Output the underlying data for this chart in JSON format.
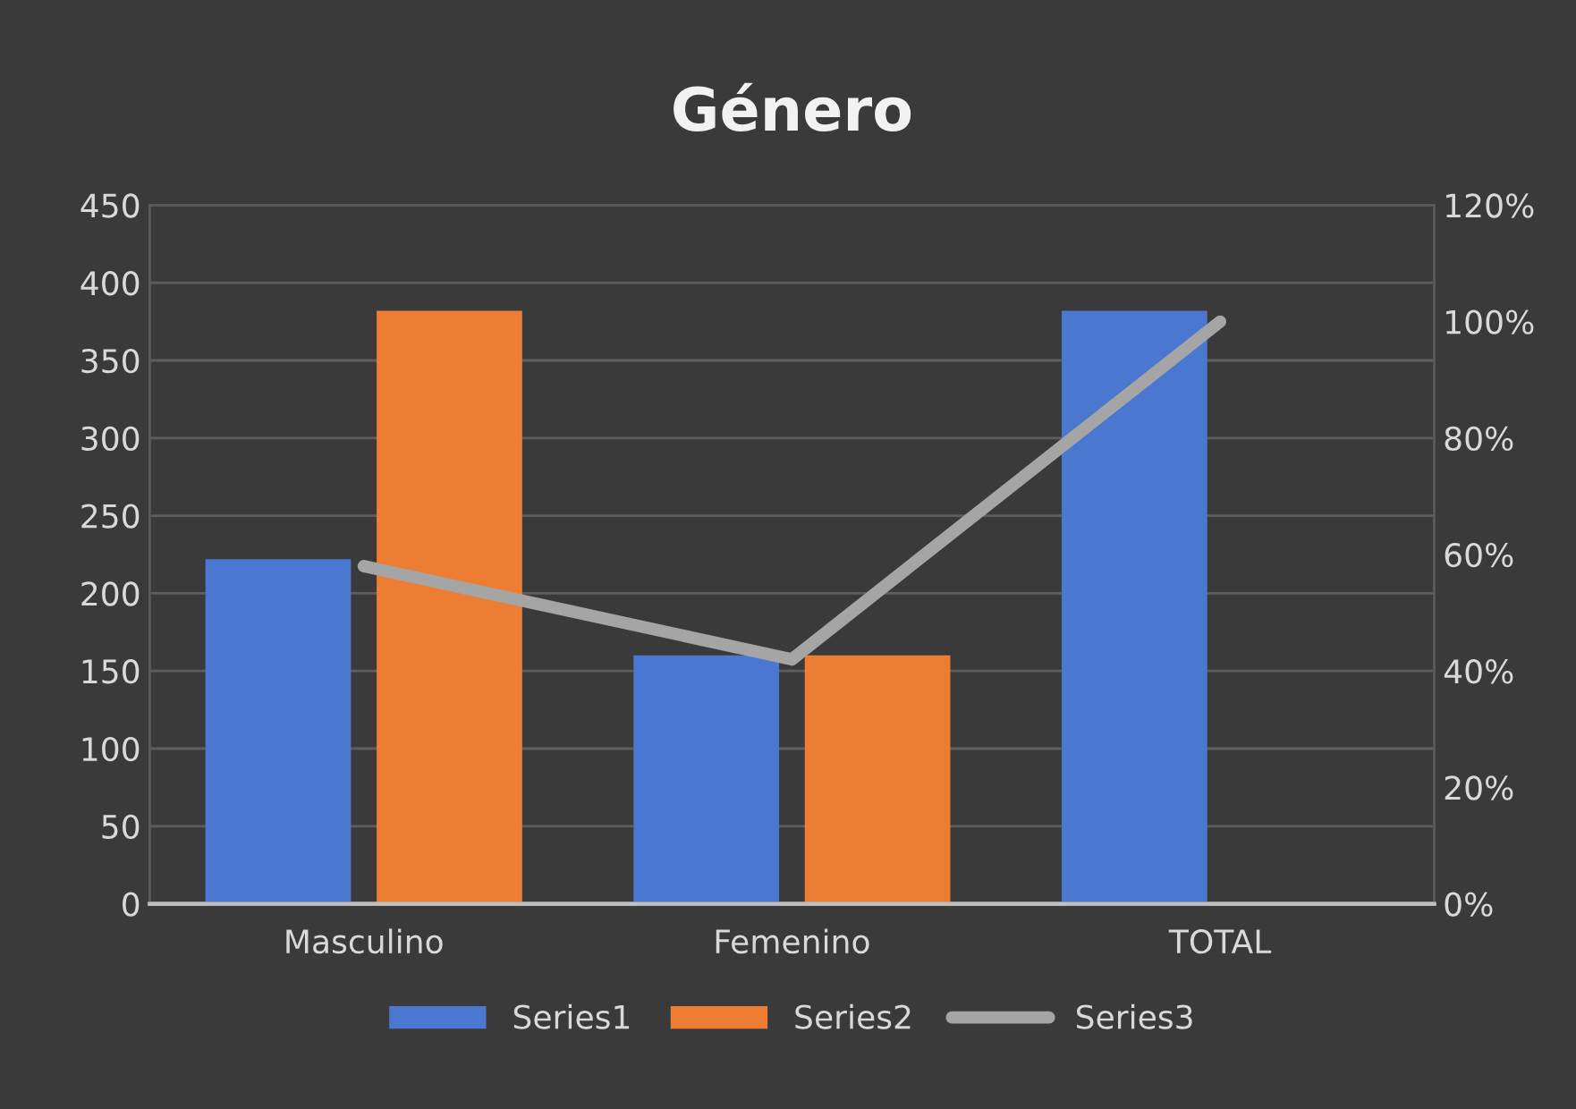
{
  "chart_data": {
    "type": "bar",
    "title": "Género",
    "categories": [
      "Masculino",
      "Femenino",
      "TOTAL"
    ],
    "series": [
      {
        "name": "Series1",
        "color": "#4a78d0",
        "values": [
          222,
          160,
          382
        ]
      },
      {
        "name": "Series2",
        "color": "#ee7d34",
        "values": [
          382,
          160,
          null
        ]
      },
      {
        "name": "Series3",
        "color": "#a5a5a5",
        "type": "line",
        "axis": "y2",
        "values": [
          58,
          42,
          100
        ]
      }
    ],
    "ylim": [
      0,
      450
    ],
    "yticks": [
      0,
      50,
      100,
      150,
      200,
      250,
      300,
      350,
      400,
      450
    ],
    "y2lim": [
      0,
      120
    ],
    "y2ticks": [
      {
        "value": 0,
        "label": "0%"
      },
      {
        "value": 20,
        "label": "20%"
      },
      {
        "value": 40,
        "label": "40%"
      },
      {
        "value": 60,
        "label": "60%"
      },
      {
        "value": 80,
        "label": "80%"
      },
      {
        "value": 100,
        "label": "100%"
      },
      {
        "value": 120,
        "label": "120%"
      }
    ],
    "grid": "y",
    "legend": "bottom",
    "marker": "none",
    "line_style": "solid"
  }
}
